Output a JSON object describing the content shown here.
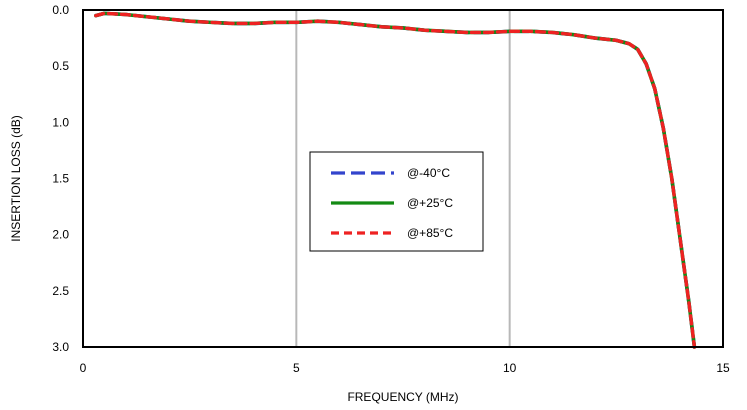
{
  "chart_data": {
    "type": "line",
    "title": "",
    "xlabel": "FREQUENCY (MHz)",
    "ylabel": "INSERTION LOSS (dB)",
    "xlim": [
      0,
      15
    ],
    "ylim": [
      0,
      3
    ],
    "y_inverted": true,
    "x_ticks": [
      0,
      5,
      10,
      15
    ],
    "y_ticks": [
      0.0,
      0.5,
      1.0,
      1.5,
      2.0,
      2.5,
      3.0
    ],
    "x_tick_labels": [
      "0",
      "5",
      "10",
      "15"
    ],
    "y_tick_labels": [
      "0.0",
      "0.5",
      "1.0",
      "1.5",
      "2.0",
      "2.5",
      "3.0"
    ],
    "grid": "vertical",
    "legend_position": "center",
    "series": [
      {
        "name": "@-40°C",
        "color": "#3344cc",
        "style": "dashed",
        "x": [
          0.3,
          0.5,
          1.0,
          1.5,
          2.0,
          2.5,
          3.0,
          3.5,
          4.0,
          4.5,
          5.0,
          5.5,
          6.0,
          6.5,
          7.0,
          7.5,
          8.0,
          8.5,
          9.0,
          9.5,
          10.0,
          10.5,
          11.0,
          11.5,
          12.0,
          12.5,
          12.8,
          13.0,
          13.2,
          13.4,
          13.6,
          13.8,
          14.0,
          14.2,
          14.33
        ],
        "y": [
          0.05,
          0.03,
          0.04,
          0.06,
          0.08,
          0.1,
          0.11,
          0.12,
          0.12,
          0.11,
          0.11,
          0.1,
          0.11,
          0.13,
          0.15,
          0.16,
          0.18,
          0.19,
          0.2,
          0.2,
          0.19,
          0.19,
          0.2,
          0.22,
          0.25,
          0.27,
          0.3,
          0.35,
          0.48,
          0.7,
          1.05,
          1.5,
          2.05,
          2.6,
          3.0
        ]
      },
      {
        "name": "@+25°C",
        "color": "#138a13",
        "style": "solid",
        "x": [
          0.3,
          0.5,
          1.0,
          1.5,
          2.0,
          2.5,
          3.0,
          3.5,
          4.0,
          4.5,
          5.0,
          5.5,
          6.0,
          6.5,
          7.0,
          7.5,
          8.0,
          8.5,
          9.0,
          9.5,
          10.0,
          10.5,
          11.0,
          11.5,
          12.0,
          12.5,
          12.8,
          13.0,
          13.2,
          13.4,
          13.6,
          13.8,
          14.0,
          14.2,
          14.33
        ],
        "y": [
          0.05,
          0.03,
          0.04,
          0.06,
          0.08,
          0.1,
          0.11,
          0.12,
          0.12,
          0.11,
          0.11,
          0.1,
          0.11,
          0.13,
          0.15,
          0.16,
          0.18,
          0.19,
          0.2,
          0.2,
          0.19,
          0.19,
          0.2,
          0.22,
          0.25,
          0.27,
          0.3,
          0.35,
          0.48,
          0.7,
          1.05,
          1.5,
          2.05,
          2.6,
          3.0
        ]
      },
      {
        "name": "@+85°C",
        "color": "#ee2222",
        "style": "dashed",
        "x": [
          0.3,
          0.5,
          1.0,
          1.5,
          2.0,
          2.5,
          3.0,
          3.5,
          4.0,
          4.5,
          5.0,
          5.5,
          6.0,
          6.5,
          7.0,
          7.5,
          8.0,
          8.5,
          9.0,
          9.5,
          10.0,
          10.5,
          11.0,
          11.5,
          12.0,
          12.5,
          12.8,
          13.0,
          13.2,
          13.4,
          13.6,
          13.8,
          14.0,
          14.2,
          14.33
        ],
        "y": [
          0.05,
          0.03,
          0.04,
          0.06,
          0.08,
          0.1,
          0.11,
          0.12,
          0.12,
          0.11,
          0.11,
          0.1,
          0.11,
          0.13,
          0.15,
          0.16,
          0.18,
          0.19,
          0.2,
          0.2,
          0.19,
          0.19,
          0.2,
          0.22,
          0.25,
          0.27,
          0.3,
          0.35,
          0.48,
          0.7,
          1.05,
          1.5,
          2.05,
          2.6,
          3.0
        ]
      }
    ]
  }
}
